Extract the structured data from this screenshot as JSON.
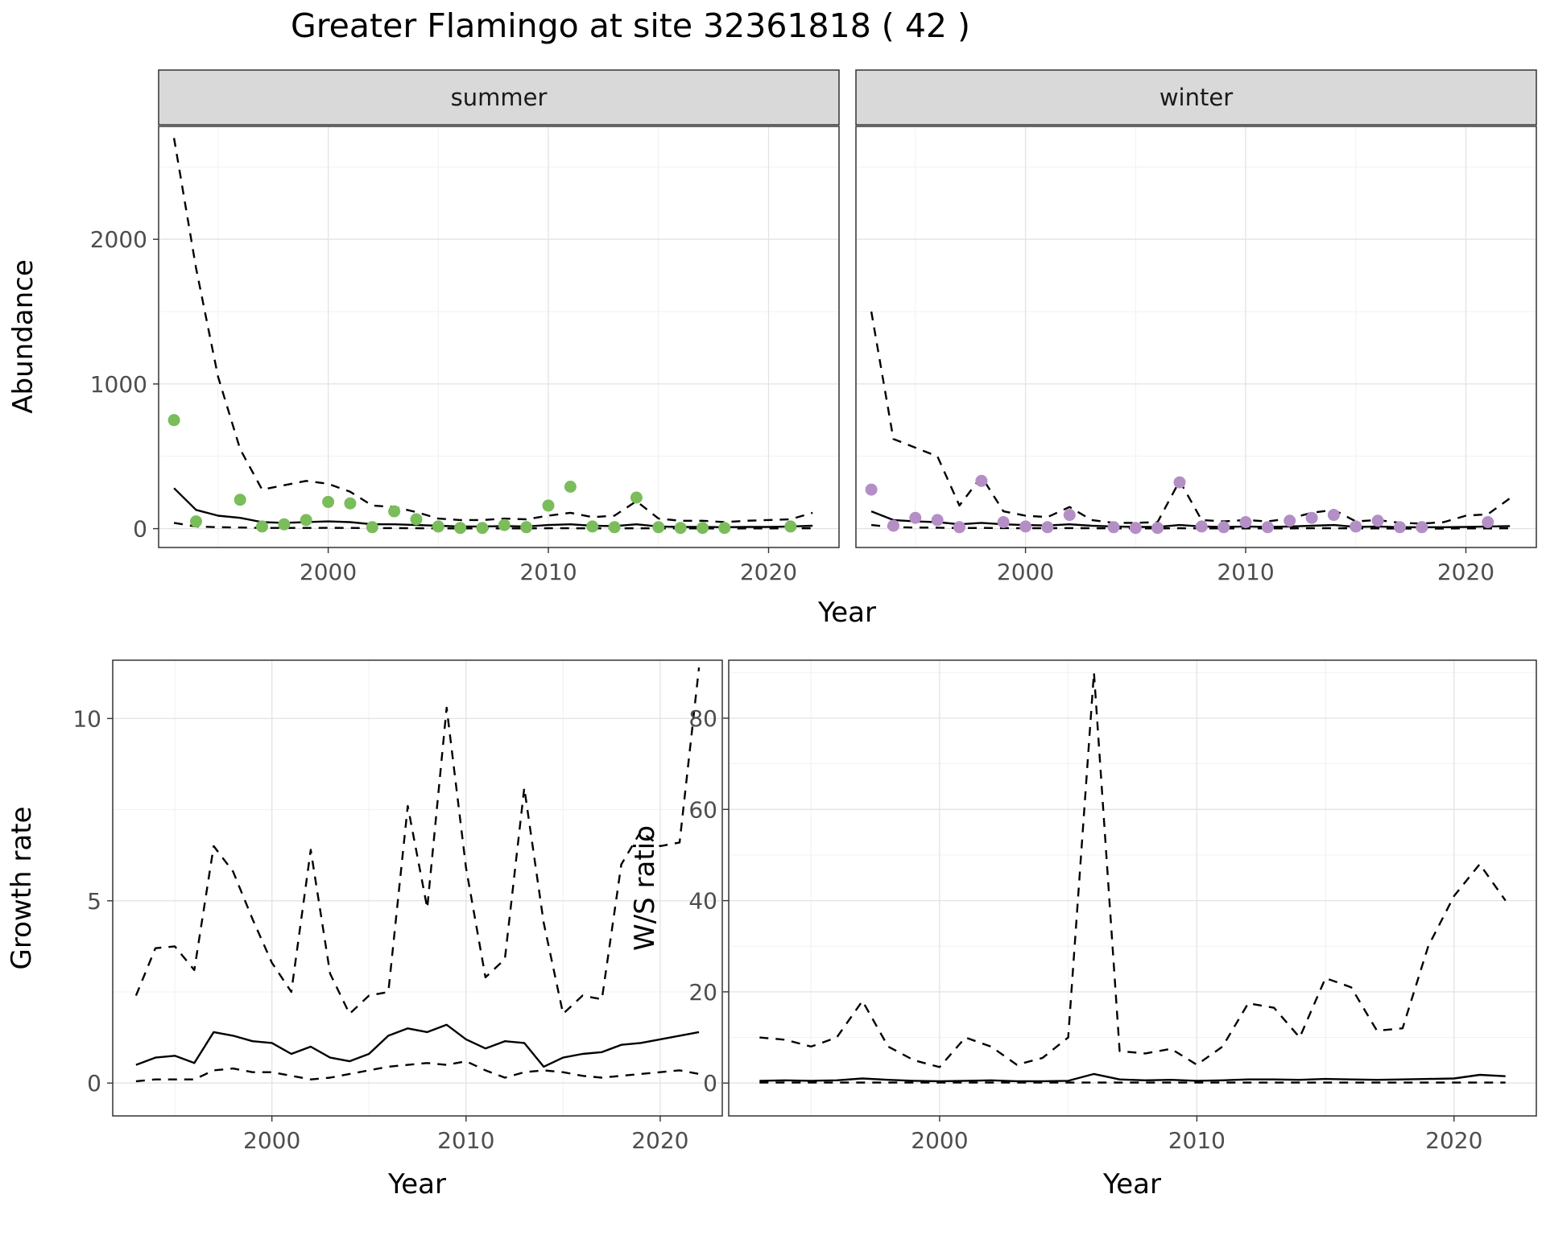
{
  "chart_data": {
    "figure_title": "Greater Flamingo at site 32361818 ( 42 )",
    "charts": [
      {
        "id": "abundance",
        "type": "scatter",
        "ylabel": "Abundance",
        "xlabel": "Year",
        "xticks": [
          2000,
          2010,
          2020
        ],
        "yticks": [
          0,
          1000,
          2000
        ],
        "xlim": [
          1992.3,
          2023.2
        ],
        "ylim": [
          -130,
          2780
        ],
        "years": [
          1993,
          1994,
          1995,
          1996,
          1997,
          1998,
          1999,
          2000,
          2001,
          2002,
          2003,
          2004,
          2005,
          2006,
          2007,
          2008,
          2009,
          2010,
          2011,
          2012,
          2013,
          2014,
          2015,
          2016,
          2017,
          2018,
          2019,
          2020,
          2021,
          2022
        ],
        "facets": [
          {
            "label": "summer",
            "point_color": "#7abd5a",
            "observed_x": [
              1993,
              1994,
              1996,
              1997,
              1998,
              1999,
              2000,
              2001,
              2002,
              2003,
              2004,
              2005,
              2006,
              2007,
              2008,
              2009,
              2010,
              2011,
              2012,
              2013,
              2014,
              2015,
              2016,
              2017,
              2018,
              2021
            ],
            "observed_y": [
              750,
              50,
              200,
              15,
              30,
              60,
              185,
              175,
              10,
              120,
              65,
              15,
              5,
              5,
              25,
              10,
              160,
              290,
              15,
              10,
              215,
              10,
              5,
              5,
              5,
              15
            ],
            "fit": [
              280,
              130,
              90,
              75,
              45,
              40,
              45,
              50,
              45,
              30,
              30,
              25,
              20,
              15,
              15,
              18,
              15,
              25,
              30,
              20,
              18,
              30,
              15,
              12,
              12,
              10,
              12,
              12,
              15,
              20
            ],
            "ci_upper": [
              2700,
              1800,
              1050,
              550,
              270,
              300,
              330,
              310,
              255,
              160,
              150,
              115,
              70,
              60,
              60,
              70,
              65,
              90,
              110,
              80,
              90,
              190,
              70,
              55,
              55,
              45,
              55,
              60,
              65,
              110
            ],
            "ci_lower": [
              40,
              15,
              10,
              8,
              5,
              5,
              5,
              6,
              5,
              4,
              4,
              3,
              2,
              2,
              2,
              2,
              2,
              3,
              3,
              2,
              2,
              3,
              2,
              2,
              2,
              1,
              2,
              2,
              2,
              3
            ]
          },
          {
            "label": "winter",
            "point_color": "#b48fc6",
            "observed_x": [
              1993,
              1994,
              1995,
              1996,
              1997,
              1998,
              1999,
              2000,
              2001,
              2002,
              2004,
              2005,
              2006,
              2007,
              2008,
              2009,
              2010,
              2011,
              2012,
              2013,
              2014,
              2015,
              2016,
              2017,
              2018,
              2021
            ],
            "observed_y": [
              270,
              20,
              75,
              60,
              10,
              330,
              45,
              15,
              10,
              95,
              10,
              5,
              5,
              320,
              15,
              10,
              45,
              10,
              55,
              75,
              95,
              15,
              55,
              10,
              10,
              45
            ],
            "fit": [
              120,
              60,
              50,
              45,
              30,
              40,
              30,
              25,
              22,
              30,
              20,
              15,
              12,
              12,
              25,
              15,
              12,
              15,
              12,
              15,
              20,
              25,
              12,
              15,
              10,
              10,
              10,
              12,
              15,
              18
            ],
            "ci_upper": [
              1500,
              620,
              560,
              500,
              160,
              360,
              120,
              90,
              80,
              150,
              60,
              40,
              40,
              45,
              330,
              60,
              50,
              60,
              50,
              70,
              110,
              130,
              50,
              60,
              40,
              35,
              45,
              90,
              100,
              210
            ],
            "ci_lower": [
              25,
              10,
              8,
              7,
              4,
              5,
              4,
              3,
              3,
              4,
              3,
              2,
              2,
              2,
              3,
              2,
              2,
              2,
              2,
              2,
              3,
              3,
              2,
              2,
              1,
              1,
              1,
              2,
              2,
              3
            ]
          }
        ]
      },
      {
        "id": "growth_rate",
        "type": "line",
        "ylabel": "Growth rate",
        "xlabel": "Year",
        "xticks": [
          2000,
          2010,
          2020
        ],
        "yticks": [
          0,
          5,
          10
        ],
        "xlim": [
          1991.8,
          2023.2
        ],
        "ylim": [
          -0.9,
          11.6
        ],
        "years": [
          1993,
          1994,
          1995,
          1996,
          1997,
          1998,
          1999,
          2000,
          2001,
          2002,
          2003,
          2004,
          2005,
          2006,
          2007,
          2008,
          2009,
          2010,
          2011,
          2012,
          2013,
          2014,
          2015,
          2016,
          2017,
          2018,
          2019,
          2020,
          2021,
          2022
        ],
        "fit": [
          0.5,
          0.7,
          0.75,
          0.55,
          1.4,
          1.3,
          1.15,
          1.1,
          0.8,
          1.0,
          0.7,
          0.6,
          0.8,
          1.3,
          1.5,
          1.4,
          1.6,
          1.2,
          0.95,
          1.15,
          1.1,
          0.45,
          0.7,
          0.8,
          0.85,
          1.05,
          1.1,
          1.2,
          1.3,
          1.4
        ],
        "ci_upper": [
          2.4,
          3.7,
          3.75,
          3.1,
          6.5,
          5.8,
          4.5,
          3.3,
          2.5,
          6.4,
          3.0,
          1.9,
          2.4,
          2.5,
          7.6,
          4.8,
          10.3,
          5.9,
          2.9,
          3.4,
          8.1,
          4.4,
          1.9,
          2.4,
          2.3,
          6.0,
          6.9,
          6.5,
          6.6,
          11.4
        ],
        "ci_lower": [
          0.05,
          0.1,
          0.1,
          0.1,
          0.35,
          0.4,
          0.3,
          0.3,
          0.2,
          0.1,
          0.15,
          0.25,
          0.35,
          0.45,
          0.5,
          0.55,
          0.5,
          0.6,
          0.35,
          0.15,
          0.3,
          0.35,
          0.3,
          0.2,
          0.15,
          0.2,
          0.25,
          0.3,
          0.35,
          0.25
        ]
      },
      {
        "id": "ws_ratio",
        "type": "line",
        "ylabel": "W/S ratio",
        "xlabel": "Year",
        "xticks": [
          2000,
          2010,
          2020
        ],
        "yticks": [
          0,
          20,
          40,
          60,
          80
        ],
        "xlim": [
          1991.8,
          2023.2
        ],
        "ylim": [
          -7.2,
          92.7
        ],
        "years": [
          1993,
          1994,
          1995,
          1996,
          1997,
          1998,
          1999,
          2000,
          2001,
          2002,
          2003,
          2004,
          2005,
          2006,
          2007,
          2008,
          2009,
          2010,
          2011,
          2012,
          2013,
          2014,
          2015,
          2016,
          2017,
          2018,
          2019,
          2020,
          2021,
          2022
        ],
        "fit": [
          0.5,
          0.6,
          0.5,
          0.6,
          1.0,
          0.7,
          0.5,
          0.4,
          0.5,
          0.6,
          0.4,
          0.4,
          0.5,
          2.0,
          0.8,
          0.6,
          0.7,
          0.5,
          0.6,
          0.8,
          0.8,
          0.7,
          0.9,
          0.8,
          0.7,
          0.8,
          0.9,
          1.0,
          1.8,
          1.5
        ],
        "ci_upper": [
          10,
          9.5,
          8,
          10,
          18,
          8,
          5,
          3.5,
          10,
          8,
          4,
          5.5,
          10,
          90,
          7,
          6.5,
          7.5,
          4,
          8,
          17.5,
          16.5,
          10,
          23,
          21,
          11.5,
          12,
          30,
          41,
          48,
          40
        ],
        "ci_lower": [
          0.1,
          0.1,
          0.1,
          0.1,
          0.1,
          0.1,
          0.1,
          0.1,
          0.1,
          0.1,
          0.1,
          0.1,
          0.1,
          0.1,
          0.1,
          0.1,
          0.1,
          0.1,
          0.1,
          0.1,
          0.1,
          0.1,
          0.1,
          0.1,
          0.1,
          0.1,
          0.1,
          0.1,
          0.1,
          0.1
        ]
      }
    ]
  },
  "styles": {
    "strip_bg": "#d9d9d9",
    "grid_major": "#e3e3e3",
    "grid_minor": "#f1f1f1",
    "panel_border": "#333333",
    "axis_text": "#4d4d4d",
    "line_color": "#000000",
    "summer_point": "#7abd5a",
    "winter_point": "#b48fc6"
  }
}
